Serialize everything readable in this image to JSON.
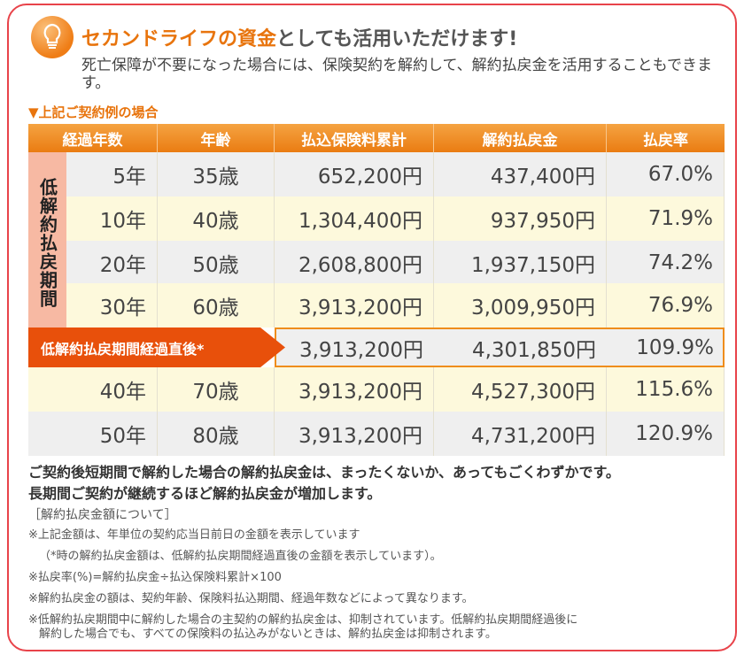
{
  "heading": {
    "highlight": "セカンドライフの資金",
    "rest": "としても活用いただけます!"
  },
  "lead": "死亡保障が不要になった場合には、保険契約を解約して、解約払戻金を活用することもできます。",
  "subheading": "▼上記ご契約例の場合",
  "table": {
    "headers": [
      "経過年数",
      "年齢",
      "払込保険料累計",
      "解約払戻金",
      "払戻率"
    ],
    "period_label": "低解約払戻期間",
    "rows": [
      {
        "years": "5年",
        "age": "35歳",
        "paid": "652,200円",
        "refund": "437,400円",
        "rate": "67.0%"
      },
      {
        "years": "10年",
        "age": "40歳",
        "paid": "1,304,400円",
        "refund": "937,950円",
        "rate": "71.9%"
      },
      {
        "years": "20年",
        "age": "50歳",
        "paid": "2,608,800円",
        "refund": "1,937,150円",
        "rate": "74.2%"
      },
      {
        "years": "30年",
        "age": "60歳",
        "paid": "3,913,200円",
        "refund": "3,009,950円",
        "rate": "76.9%"
      }
    ],
    "special": {
      "label": "低解約払戻期間経過直後*",
      "paid": "3,913,200円",
      "refund": "4,301,850円",
      "rate": "109.9%"
    },
    "after_rows": [
      {
        "years": "40年",
        "age": "70歳",
        "paid": "3,913,200円",
        "refund": "4,527,300円",
        "rate": "115.6%"
      },
      {
        "years": "50年",
        "age": "80歳",
        "paid": "3,913,200円",
        "refund": "4,731,200円",
        "rate": "120.9%"
      }
    ]
  },
  "summary": [
    "ご契約後短期間で解約した場合の解約払戻金は、まったくないか、あってもごくわずかです。",
    "長期間ご契約が継続するほど解約払戻金が増加します。"
  ],
  "notes": {
    "title": "［解約払戻金額について］",
    "items": [
      "※上記金額は、年単位の契約応当日前日の金額を表示しています",
      "（*時の解約払戻金額は、低解約払戻期間経過直後の金額を表示しています）。",
      "※払戻率(%)=解約払戻金÷払込保険料累計×100",
      "※解約払戻金の額は、契約年齢、保険料払込期間、経過年数などによって異なります。",
      "※低解約払戻期間中に解約した場合の主契約の解約払戻金は、抑制されています。低解約払戻期間経過後に",
      "解約した場合でも、すべての保険料の払込みがないときは、解約払戻金は抑制されます。"
    ]
  }
}
